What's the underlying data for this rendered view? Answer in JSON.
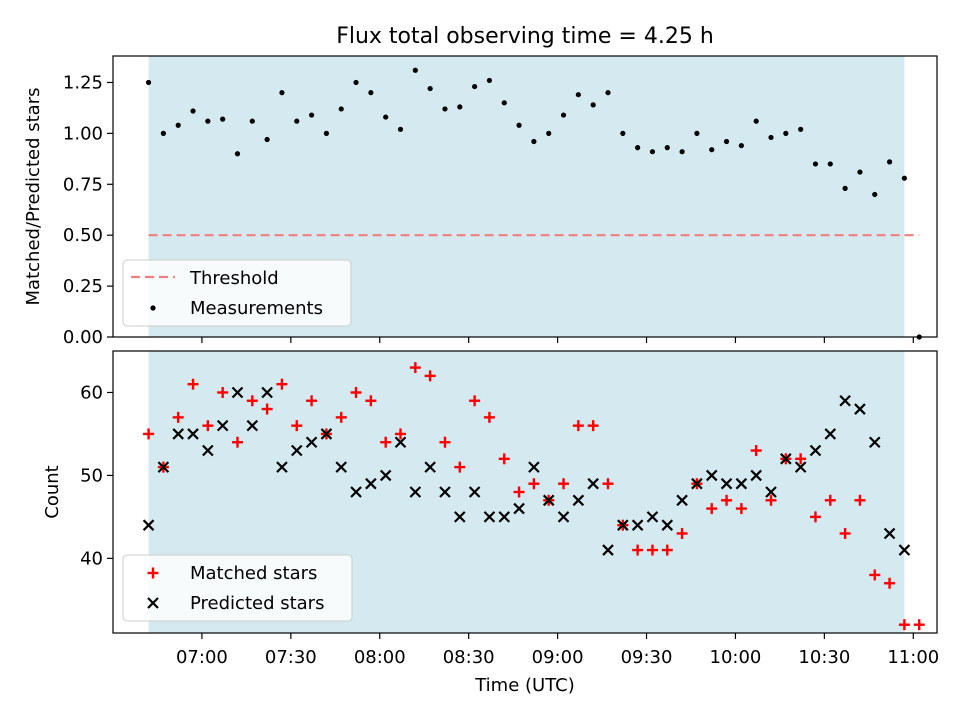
{
  "chart_data": [
    {
      "type": "scatter",
      "title": "Flux total observing time = 4.25 h",
      "ylabel": "Matched/Predicted stars",
      "ylim": [
        0.0,
        1.38
      ],
      "yticks": [
        "0.00",
        "0.25",
        "0.50",
        "0.75",
        "1.00",
        "1.25"
      ],
      "ytick_values": [
        0.0,
        0.25,
        0.5,
        0.75,
        1.0,
        1.25
      ],
      "shaded_span": [
        "06:42",
        "10:57"
      ],
      "shade_color": "#d4eaf0",
      "threshold": {
        "name": "Threshold",
        "value": 0.5,
        "color": "#f07f7f"
      },
      "series": [
        {
          "name": "Measurements",
          "color": "#000000",
          "x": [
            "06:42",
            "06:47",
            "06:52",
            "06:57",
            "07:02",
            "07:07",
            "07:12",
            "07:17",
            "07:22",
            "07:27",
            "07:32",
            "07:37",
            "07:42",
            "07:47",
            "07:52",
            "07:57",
            "08:02",
            "08:07",
            "08:12",
            "08:17",
            "08:22",
            "08:27",
            "08:32",
            "08:37",
            "08:42",
            "08:47",
            "08:52",
            "08:57",
            "09:02",
            "09:07",
            "09:12",
            "09:17",
            "09:22",
            "09:27",
            "09:32",
            "09:37",
            "09:42",
            "09:47",
            "09:52",
            "09:57",
            "10:02",
            "10:07",
            "10:12",
            "10:17",
            "10:22",
            "10:27",
            "10:32",
            "10:37",
            "10:42",
            "10:47",
            "10:52",
            "10:57",
            "11:02"
          ],
          "y": [
            1.25,
            1.0,
            1.04,
            1.11,
            1.06,
            1.07,
            0.9,
            1.06,
            0.97,
            1.2,
            1.06,
            1.09,
            1.0,
            1.12,
            1.25,
            1.2,
            1.08,
            1.02,
            1.31,
            1.22,
            1.12,
            1.13,
            1.23,
            1.26,
            1.15,
            1.04,
            0.96,
            1.0,
            1.09,
            1.19,
            1.14,
            1.2,
            1.0,
            0.93,
            0.91,
            0.93,
            0.91,
            1.0,
            0.92,
            0.96,
            0.94,
            1.06,
            0.98,
            1.0,
            1.02,
            0.85,
            0.85,
            0.73,
            0.81,
            0.7,
            0.86,
            0.78,
            0.0
          ]
        }
      ]
    },
    {
      "type": "scatter",
      "xlabel": "Time (UTC)",
      "ylabel": "Count",
      "ylim": [
        31,
        65
      ],
      "yticks": [
        "40",
        "50",
        "60"
      ],
      "ytick_values": [
        40,
        50,
        60
      ],
      "xticks": [
        "07:00",
        "07:30",
        "08:00",
        "08:30",
        "09:00",
        "09:30",
        "10:00",
        "10:30",
        "11:00"
      ],
      "xlim": [
        "06:30",
        "11:08"
      ],
      "shaded_span": [
        "06:42",
        "10:57"
      ],
      "shade_color": "#d4eaf0",
      "series": [
        {
          "name": "Matched stars",
          "marker": "+",
          "color": "#ff0000",
          "x": [
            "06:42",
            "06:47",
            "06:52",
            "06:57",
            "07:02",
            "07:07",
            "07:12",
            "07:17",
            "07:22",
            "07:27",
            "07:32",
            "07:37",
            "07:42",
            "07:47",
            "07:52",
            "07:57",
            "08:02",
            "08:07",
            "08:12",
            "08:17",
            "08:22",
            "08:27",
            "08:32",
            "08:37",
            "08:42",
            "08:47",
            "08:52",
            "08:57",
            "09:02",
            "09:07",
            "09:12",
            "09:17",
            "09:22",
            "09:27",
            "09:32",
            "09:37",
            "09:42",
            "09:47",
            "09:52",
            "09:57",
            "10:02",
            "10:07",
            "10:12",
            "10:17",
            "10:22",
            "10:27",
            "10:32",
            "10:37",
            "10:42",
            "10:47",
            "10:52",
            "10:57",
            "11:02"
          ],
          "y": [
            55,
            51,
            57,
            61,
            56,
            60,
            54,
            59,
            58,
            61,
            56,
            59,
            55,
            57,
            60,
            59,
            54,
            55,
            63,
            62,
            54,
            51,
            59,
            57,
            52,
            48,
            49,
            47,
            49,
            56,
            56,
            49,
            44,
            41,
            41,
            41,
            43,
            49,
            46,
            47,
            46,
            53,
            47,
            52,
            52,
            45,
            47,
            43,
            47,
            38,
            37,
            32,
            32
          ]
        },
        {
          "name": "Predicted stars",
          "marker": "x",
          "color": "#000000",
          "x": [
            "06:42",
            "06:47",
            "06:52",
            "06:57",
            "07:02",
            "07:07",
            "07:12",
            "07:17",
            "07:22",
            "07:27",
            "07:32",
            "07:37",
            "07:42",
            "07:47",
            "07:52",
            "07:57",
            "08:02",
            "08:07",
            "08:12",
            "08:17",
            "08:22",
            "08:27",
            "08:32",
            "08:37",
            "08:42",
            "08:47",
            "08:52",
            "08:57",
            "09:02",
            "09:07",
            "09:12",
            "09:17",
            "09:22",
            "09:27",
            "09:32",
            "09:37",
            "09:42",
            "09:47",
            "09:52",
            "09:57",
            "10:02",
            "10:07",
            "10:12",
            "10:17",
            "10:22",
            "10:27",
            "10:32",
            "10:37",
            "10:42",
            "10:47",
            "10:52",
            "10:57"
          ],
          "y": [
            44,
            51,
            55,
            55,
            53,
            56,
            60,
            56,
            60,
            51,
            53,
            54,
            55,
            51,
            48,
            49,
            50,
            54,
            48,
            51,
            48,
            45,
            48,
            45,
            45,
            46,
            51,
            47,
            45,
            47,
            49,
            41,
            44,
            44,
            45,
            44,
            47,
            49,
            50,
            49,
            49,
            50,
            48,
            52,
            51,
            53,
            55,
            59,
            58,
            54,
            43,
            41
          ]
        }
      ],
      "legend": "lower-left"
    }
  ]
}
